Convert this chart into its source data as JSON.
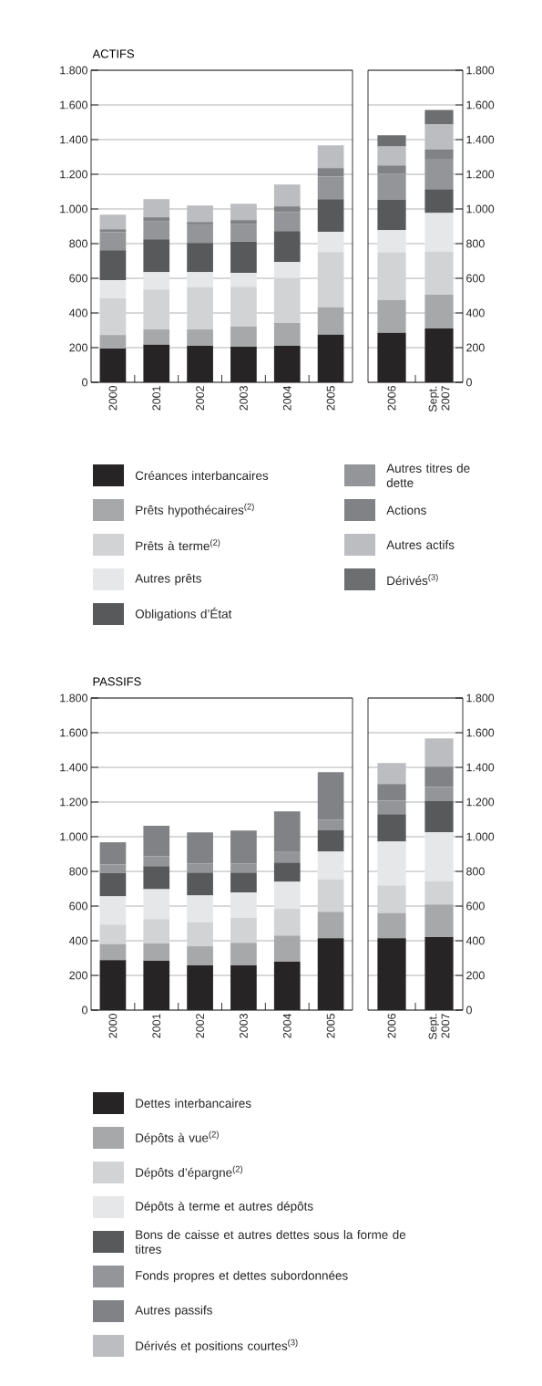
{
  "chart_data": [
    {
      "type": "bar",
      "title": "ACTIFS",
      "stacked": true,
      "grid": "y",
      "ylim": [
        0,
        1800
      ],
      "yticks": [
        0,
        200,
        400,
        600,
        800,
        {
          "value": 1000,
          "label": "1.000"
        },
        {
          "value": 1200,
          "label": "1.200"
        },
        {
          "value": 1400,
          "label": "1.400"
        },
        {
          "value": 1600,
          "label": "1.600"
        },
        {
          "value": 1800,
          "label": "1.800"
        }
      ],
      "categories": [
        "2000",
        "2001",
        "2002",
        "2003",
        "2004",
        "2005"
      ],
      "series": [
        {
          "color": "#262425",
          "values": [
            195,
            217,
            210,
            205,
            210,
            275
          ]
        },
        {
          "color": "#a7a8aa",
          "values": [
            78,
            88,
            95,
            117,
            132,
            158
          ]
        },
        {
          "color": "#d2d3d5",
          "values": [
            211,
            231,
            245,
            230,
            259,
            319
          ]
        },
        {
          "color": "#e6e7e8",
          "values": [
            105,
            100,
            86,
            79,
            93,
            116
          ]
        },
        {
          "color": "#58595b",
          "values": [
            173,
            189,
            168,
            180,
            179,
            189
          ]
        },
        {
          "color": "#939598",
          "values": [
            105,
            106,
            107,
            104,
            110,
            131
          ]
        },
        {
          "color": "#818285",
          "values": [
            16,
            21,
            14,
            21,
            32,
            48
          ]
        },
        {
          "color": "#bcbdc0",
          "values": [
            84,
            105,
            95,
            94,
            126,
            131
          ]
        }
      ]
    },
    {
      "type": "bar",
      "stacked": true,
      "grid": "y",
      "legend": "bottom",
      "ylim": [
        0,
        1800
      ],
      "yticks": [
        0,
        200,
        400,
        600,
        800,
        {
          "value": 1000,
          "label": "1.000"
        },
        {
          "value": 1200,
          "label": "1.200"
        },
        {
          "value": 1400,
          "label": "1.400"
        },
        {
          "value": 1600,
          "label": "1.600"
        },
        {
          "value": 1800,
          "label": "1.800"
        }
      ],
      "categories": [
        "2006",
        "Sept. 2007"
      ],
      "series": [
        {
          "name": "Créances interbancaires",
          "color": "#262425",
          "values": [
            285,
            310
          ]
        },
        {
          "name": "Prêts hypothécaires$^{(2)}$",
          "color": "#a7a8aa",
          "values": [
            190,
            195
          ]
        },
        {
          "name": "Prêts à terme$^{(2)}$",
          "color": "#d2d3d5",
          "values": [
            275,
            248
          ]
        },
        {
          "name": "Autres prêts",
          "color": "#e6e7e8",
          "values": [
            128,
            224
          ]
        },
        {
          "name": "Obligations d’État",
          "color": "#58595b",
          "values": [
            176,
            137
          ]
        },
        {
          "name": "Autres titres de dette",
          "color": "#939598",
          "values": [
            148,
            171
          ]
        },
        {
          "name": "Actions",
          "color": "#818285",
          "values": [
            49,
            59
          ]
        },
        {
          "name": "Autres actifs",
          "color": "#bcbdc0",
          "values": [
            109,
            143
          ]
        },
        {
          "name": "Dérivés$^{(3)}$",
          "color": "#6d6e70",
          "values": [
            65,
            84
          ]
        }
      ]
    },
    {
      "type": "bar",
      "title": "PASSIFS",
      "stacked": true,
      "grid": "y",
      "ylim": [
        0,
        1800
      ],
      "yticks": [
        0,
        200,
        400,
        600,
        800,
        {
          "value": 1000,
          "label": "1.000"
        },
        {
          "value": 1200,
          "label": "1.200"
        },
        {
          "value": 1400,
          "label": "1.400"
        },
        {
          "value": 1600,
          "label": "1.600"
        },
        {
          "value": 1800,
          "label": "1.800"
        }
      ],
      "categories": [
        "2000",
        "2001",
        "2002",
        "2003",
        "2004",
        "2005"
      ],
      "series": [
        {
          "color": "#262425",
          "values": [
            288,
            284,
            258,
            258,
            279,
            414
          ]
        },
        {
          "color": "#a7a8aa",
          "values": [
            93,
            100,
            110,
            130,
            151,
            153
          ]
        },
        {
          "color": "#d2d3d5",
          "values": [
            112,
            141,
            139,
            144,
            154,
            189
          ]
        },
        {
          "color": "#e6e7e8",
          "values": [
            163,
            172,
            154,
            147,
            156,
            158
          ]
        },
        {
          "color": "#58595b",
          "values": [
            135,
            133,
            132,
            114,
            111,
            125
          ]
        },
        {
          "color": "#939598",
          "values": [
            49,
            58,
            53,
            53,
            61,
            59
          ]
        },
        {
          "color": "#818285",
          "values": [
            128,
            175,
            179,
            189,
            234,
            274
          ]
        }
      ]
    },
    {
      "type": "bar",
      "stacked": true,
      "grid": "y",
      "legend": "bottom",
      "ylim": [
        0,
        1800
      ],
      "yticks": [
        0,
        200,
        400,
        600,
        800,
        {
          "value": 1000,
          "label": "1.000"
        },
        {
          "value": 1200,
          "label": "1.200"
        },
        {
          "value": 1400,
          "label": "1.400"
        },
        {
          "value": 1600,
          "label": "1.600"
        },
        {
          "value": 1800,
          "label": "1.800"
        }
      ],
      "categories": [
        "2006",
        "Sept. 2007"
      ],
      "series": [
        {
          "name": "Dettes interbancaires",
          "color": "#262425",
          "values": [
            414,
            421
          ]
        },
        {
          "name": "Dépôts à vue$^{(2)}$",
          "color": "#a7a8aa",
          "values": [
            146,
            188
          ]
        },
        {
          "name": "Dépôts d’épargne$^{(2)}$",
          "color": "#d2d3d5",
          "values": [
            159,
            135
          ]
        },
        {
          "name": "Dépôts à terme et autres dépôts",
          "color": "#e6e7e8",
          "values": [
            253,
            281
          ]
        },
        {
          "name": "Bons de caisse et autres dettes sous la forme de titres",
          "color": "#58595b",
          "values": [
            158,
            180
          ]
        },
        {
          "name": "Fonds propres et dettes subordonnées",
          "color": "#939598",
          "values": [
            79,
            83
          ]
        },
        {
          "name": "Autres passifs",
          "color": "#818285",
          "values": [
            95,
            116
          ]
        },
        {
          "name": "Dérivés et positions courtes$^{(3)}$",
          "color": "#bcbdc0",
          "values": [
            121,
            163
          ]
        }
      ]
    }
  ]
}
